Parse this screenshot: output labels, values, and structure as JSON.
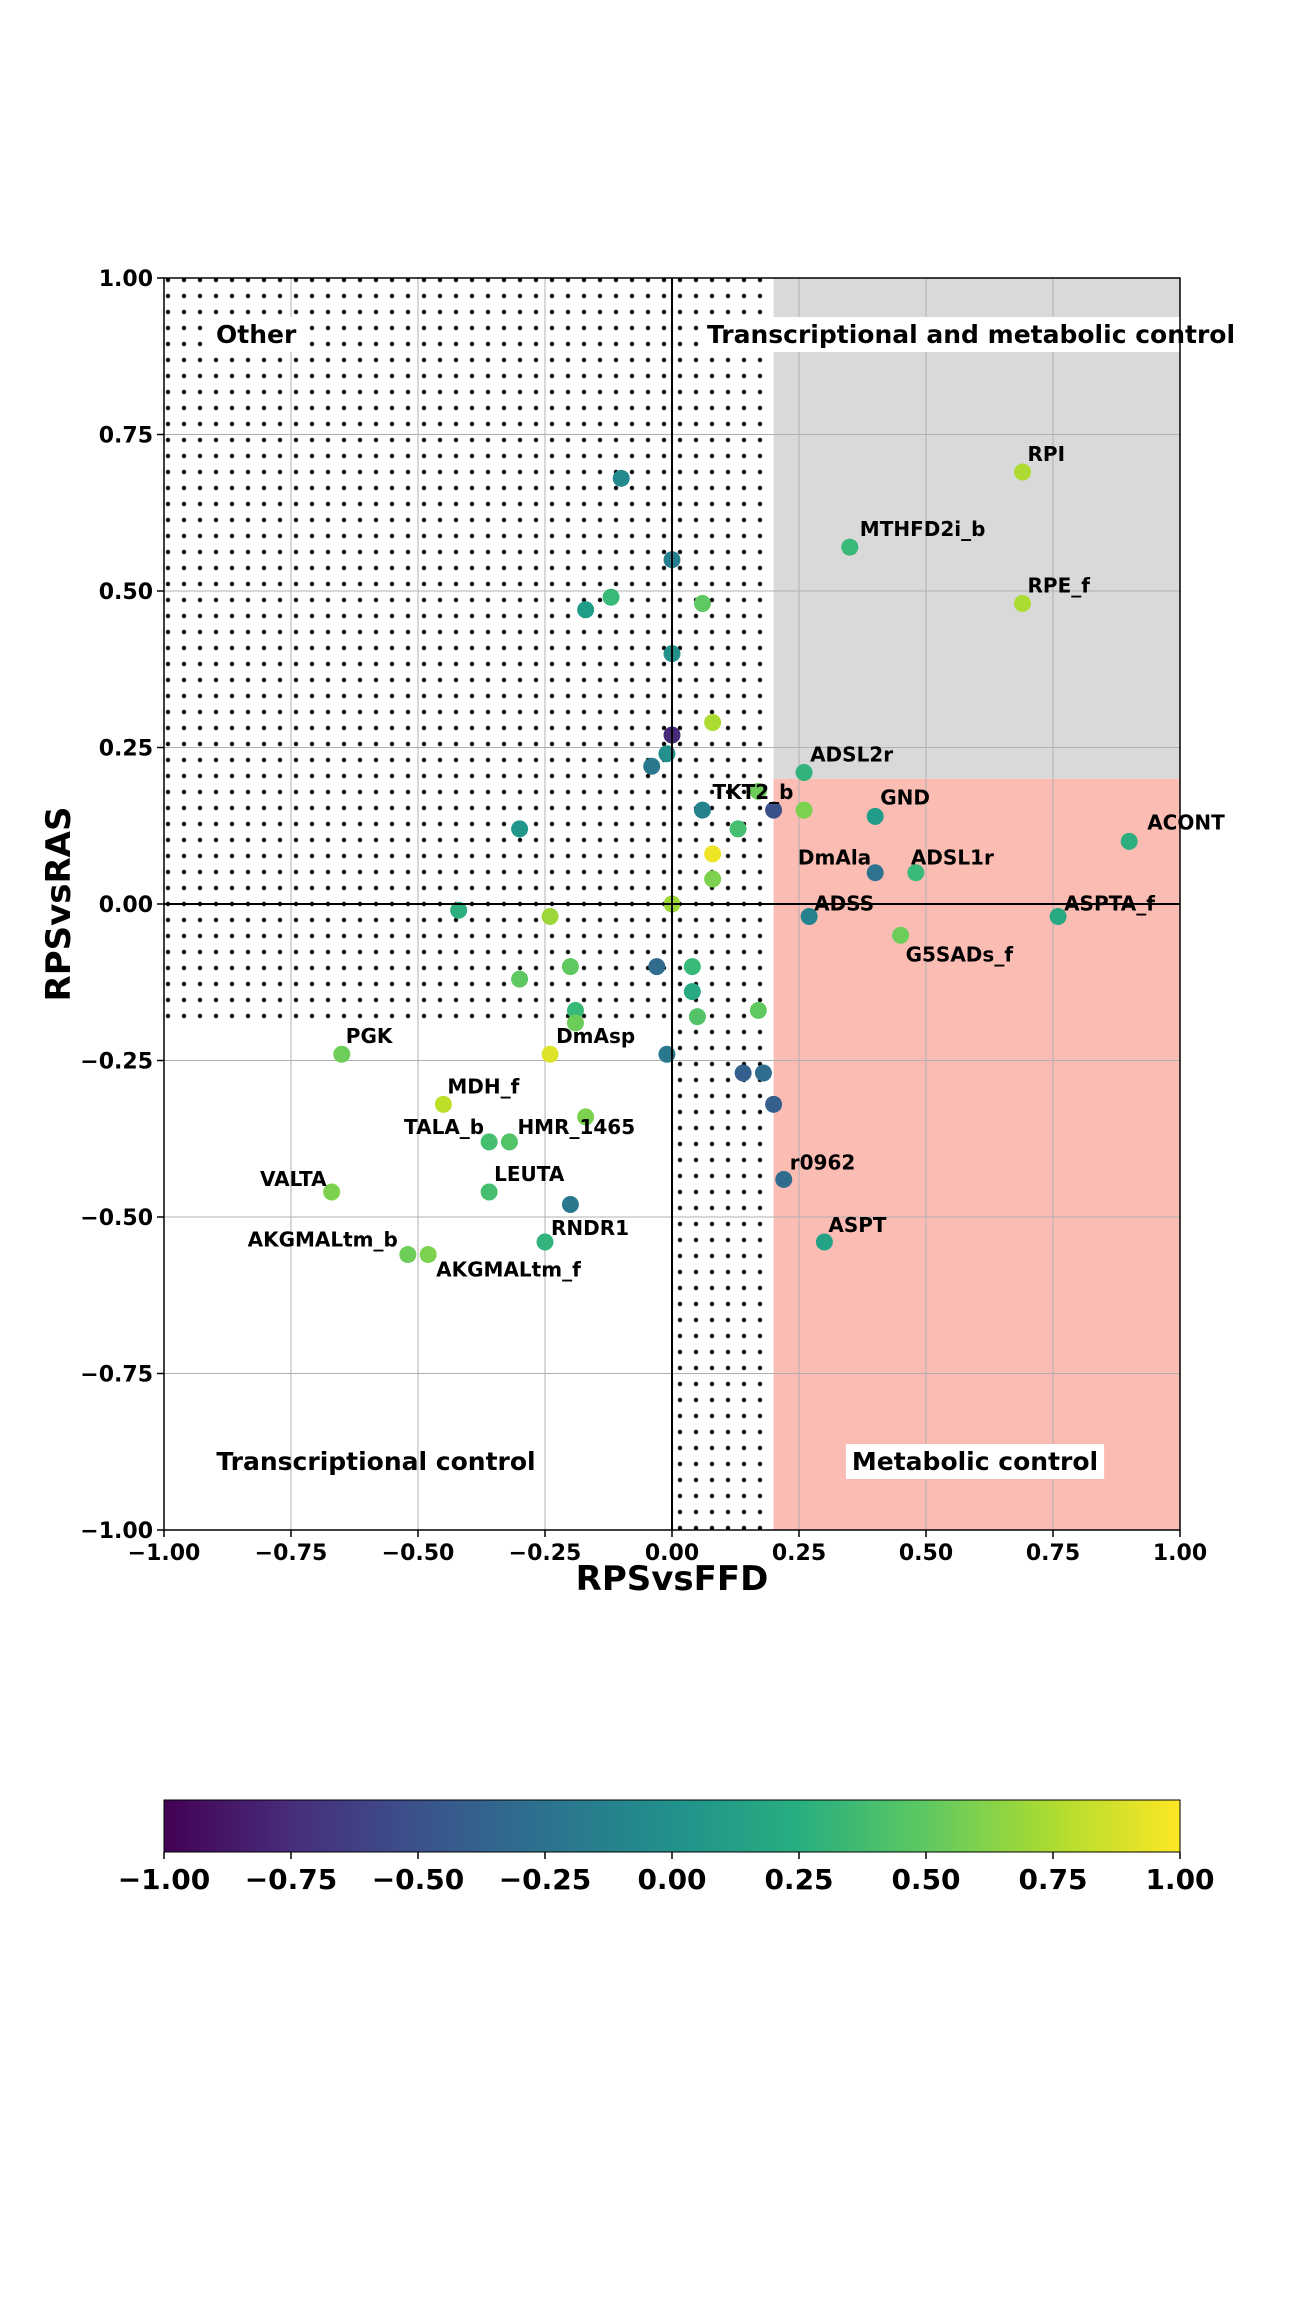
{
  "chart_data": {
    "type": "scatter",
    "xlabel": "RPSvsFFD",
    "ylabel": "RPSvsRAS",
    "xlim": [
      -1.0,
      1.0
    ],
    "ylim": [
      -1.0,
      1.0
    ],
    "xticks": [
      "−1.00",
      "−0.75",
      "−0.50",
      "−0.25",
      "0.00",
      "0.25",
      "0.50",
      "0.75",
      "1.00"
    ],
    "yticks": [
      "−1.00",
      "−0.75",
      "−0.50",
      "−0.25",
      "0.00",
      "0.25",
      "0.50",
      "0.75",
      "1.00"
    ],
    "grid": true,
    "colormap": "viridis",
    "colorbar": {
      "range": [
        -1.0,
        1.0
      ],
      "ticks": [
        "−1.00",
        "−0.75",
        "−0.50",
        "−0.25",
        "0.00",
        "0.25",
        "0.50",
        "0.75",
        "1.00"
      ]
    },
    "region_labels": {
      "top_left": "Other",
      "top_right": "Transcriptional and metabolic control",
      "bottom_left": "Transcriptional control",
      "bottom_right": "Metabolic control"
    },
    "region_colors": {
      "transcriptional_and_metabolic": "#d9d9d9",
      "metabolic": "#fbbcb4",
      "other_hatch": "#000000"
    },
    "thresholds": {
      "x": 0.2,
      "y": 0.2
    },
    "points": [
      {
        "x": 0.69,
        "y": 0.69,
        "c": 0.75,
        "label": "RPI"
      },
      {
        "x": 0.35,
        "y": 0.57,
        "c": 0.35,
        "label": "MTHFD2i_b"
      },
      {
        "x": 0.69,
        "y": 0.48,
        "c": 0.75,
        "label": "RPE_f"
      },
      {
        "x": 0.26,
        "y": 0.21,
        "c": 0.3,
        "label": "ADSL2r"
      },
      {
        "x": 0.4,
        "y": 0.14,
        "c": 0.1,
        "label": "GND"
      },
      {
        "x": 0.9,
        "y": 0.1,
        "c": 0.25,
        "label": "ACONT"
      },
      {
        "x": 0.4,
        "y": 0.05,
        "c": -0.25,
        "label": "DmAla"
      },
      {
        "x": 0.48,
        "y": 0.05,
        "c": 0.35,
        "label": "ADSL1r"
      },
      {
        "x": 0.27,
        "y": -0.02,
        "c": -0.1,
        "label": "ADSS"
      },
      {
        "x": 0.76,
        "y": -0.02,
        "c": 0.2,
        "label": "ASPTA_f"
      },
      {
        "x": 0.45,
        "y": -0.05,
        "c": 0.55,
        "label": "G5SADs_f"
      },
      {
        "x": 0.22,
        "y": -0.44,
        "c": -0.3,
        "label": "r0962"
      },
      {
        "x": 0.3,
        "y": -0.54,
        "c": 0.15,
        "label": "ASPT"
      },
      {
        "x": 0.06,
        "y": 0.15,
        "c": -0.1,
        "label": "TKT2_b"
      },
      {
        "x": 0.2,
        "y": 0.15,
        "c": -0.5,
        "label": ""
      },
      {
        "x": 0.26,
        "y": 0.15,
        "c": 0.6,
        "label": ""
      },
      {
        "x": 0.17,
        "y": 0.18,
        "c": 0.55,
        "label": ""
      },
      {
        "x": -0.65,
        "y": -0.24,
        "c": 0.55,
        "label": "PGK"
      },
      {
        "x": -0.24,
        "y": -0.24,
        "c": 0.9,
        "label": "DmAsp"
      },
      {
        "x": -0.45,
        "y": -0.32,
        "c": 0.8,
        "label": "MDH_f"
      },
      {
        "x": -0.36,
        "y": -0.38,
        "c": 0.4,
        "label": "TALA_b"
      },
      {
        "x": -0.32,
        "y": -0.38,
        "c": 0.45,
        "label": "HMR_1465"
      },
      {
        "x": -0.67,
        "y": -0.46,
        "c": 0.6,
        "label": "VALTA"
      },
      {
        "x": -0.36,
        "y": -0.46,
        "c": 0.4,
        "label": "LEUTA"
      },
      {
        "x": -0.2,
        "y": -0.48,
        "c": -0.2,
        "label": ""
      },
      {
        "x": -0.25,
        "y": -0.54,
        "c": 0.3,
        "label": "RNDR1"
      },
      {
        "x": -0.52,
        "y": -0.56,
        "c": 0.55,
        "label": "AKGMALtm_b"
      },
      {
        "x": -0.48,
        "y": -0.56,
        "c": 0.6,
        "label": "AKGMALtm_f"
      },
      {
        "x": -0.1,
        "y": 0.68,
        "c": -0.05,
        "label": ""
      },
      {
        "x": 0.0,
        "y": 0.55,
        "c": -0.15,
        "label": ""
      },
      {
        "x": -0.17,
        "y": 0.47,
        "c": 0.1,
        "label": ""
      },
      {
        "x": -0.12,
        "y": 0.49,
        "c": 0.35,
        "label": ""
      },
      {
        "x": 0.06,
        "y": 0.48,
        "c": 0.5,
        "label": ""
      },
      {
        "x": 0.0,
        "y": 0.4,
        "c": 0.0,
        "label": ""
      },
      {
        "x": 0.08,
        "y": 0.29,
        "c": 0.75,
        "label": ""
      },
      {
        "x": 0.0,
        "y": 0.27,
        "c": -0.75,
        "label": ""
      },
      {
        "x": -0.01,
        "y": 0.24,
        "c": 0.0,
        "label": ""
      },
      {
        "x": -0.04,
        "y": 0.22,
        "c": -0.2,
        "label": ""
      },
      {
        "x": 0.13,
        "y": 0.12,
        "c": 0.4,
        "label": ""
      },
      {
        "x": -0.3,
        "y": 0.12,
        "c": 0.05,
        "label": ""
      },
      {
        "x": 0.08,
        "y": 0.08,
        "c": 0.95,
        "label": ""
      },
      {
        "x": 0.08,
        "y": 0.04,
        "c": 0.6,
        "label": ""
      },
      {
        "x": 0.0,
        "y": 0.0,
        "c": 0.7,
        "label": ""
      },
      {
        "x": -0.42,
        "y": -0.01,
        "c": 0.25,
        "label": ""
      },
      {
        "x": -0.24,
        "y": -0.02,
        "c": 0.7,
        "label": ""
      },
      {
        "x": -0.03,
        "y": -0.1,
        "c": -0.3,
        "label": ""
      },
      {
        "x": 0.04,
        "y": -0.1,
        "c": 0.35,
        "label": ""
      },
      {
        "x": -0.2,
        "y": -0.1,
        "c": 0.5,
        "label": ""
      },
      {
        "x": -0.3,
        "y": -0.12,
        "c": 0.5,
        "label": ""
      },
      {
        "x": 0.04,
        "y": -0.14,
        "c": 0.2,
        "label": ""
      },
      {
        "x": 0.17,
        "y": -0.17,
        "c": 0.5,
        "label": ""
      },
      {
        "x": -0.19,
        "y": -0.17,
        "c": 0.35,
        "label": ""
      },
      {
        "x": 0.05,
        "y": -0.18,
        "c": 0.45,
        "label": ""
      },
      {
        "x": -0.19,
        "y": -0.19,
        "c": 0.55,
        "label": ""
      },
      {
        "x": -0.01,
        "y": -0.24,
        "c": -0.2,
        "label": ""
      },
      {
        "x": 0.14,
        "y": -0.27,
        "c": -0.4,
        "label": ""
      },
      {
        "x": 0.18,
        "y": -0.27,
        "c": -0.3,
        "label": ""
      },
      {
        "x": 0.2,
        "y": -0.32,
        "c": -0.4,
        "label": ""
      },
      {
        "x": -0.17,
        "y": -0.34,
        "c": 0.6,
        "label": ""
      }
    ]
  }
}
